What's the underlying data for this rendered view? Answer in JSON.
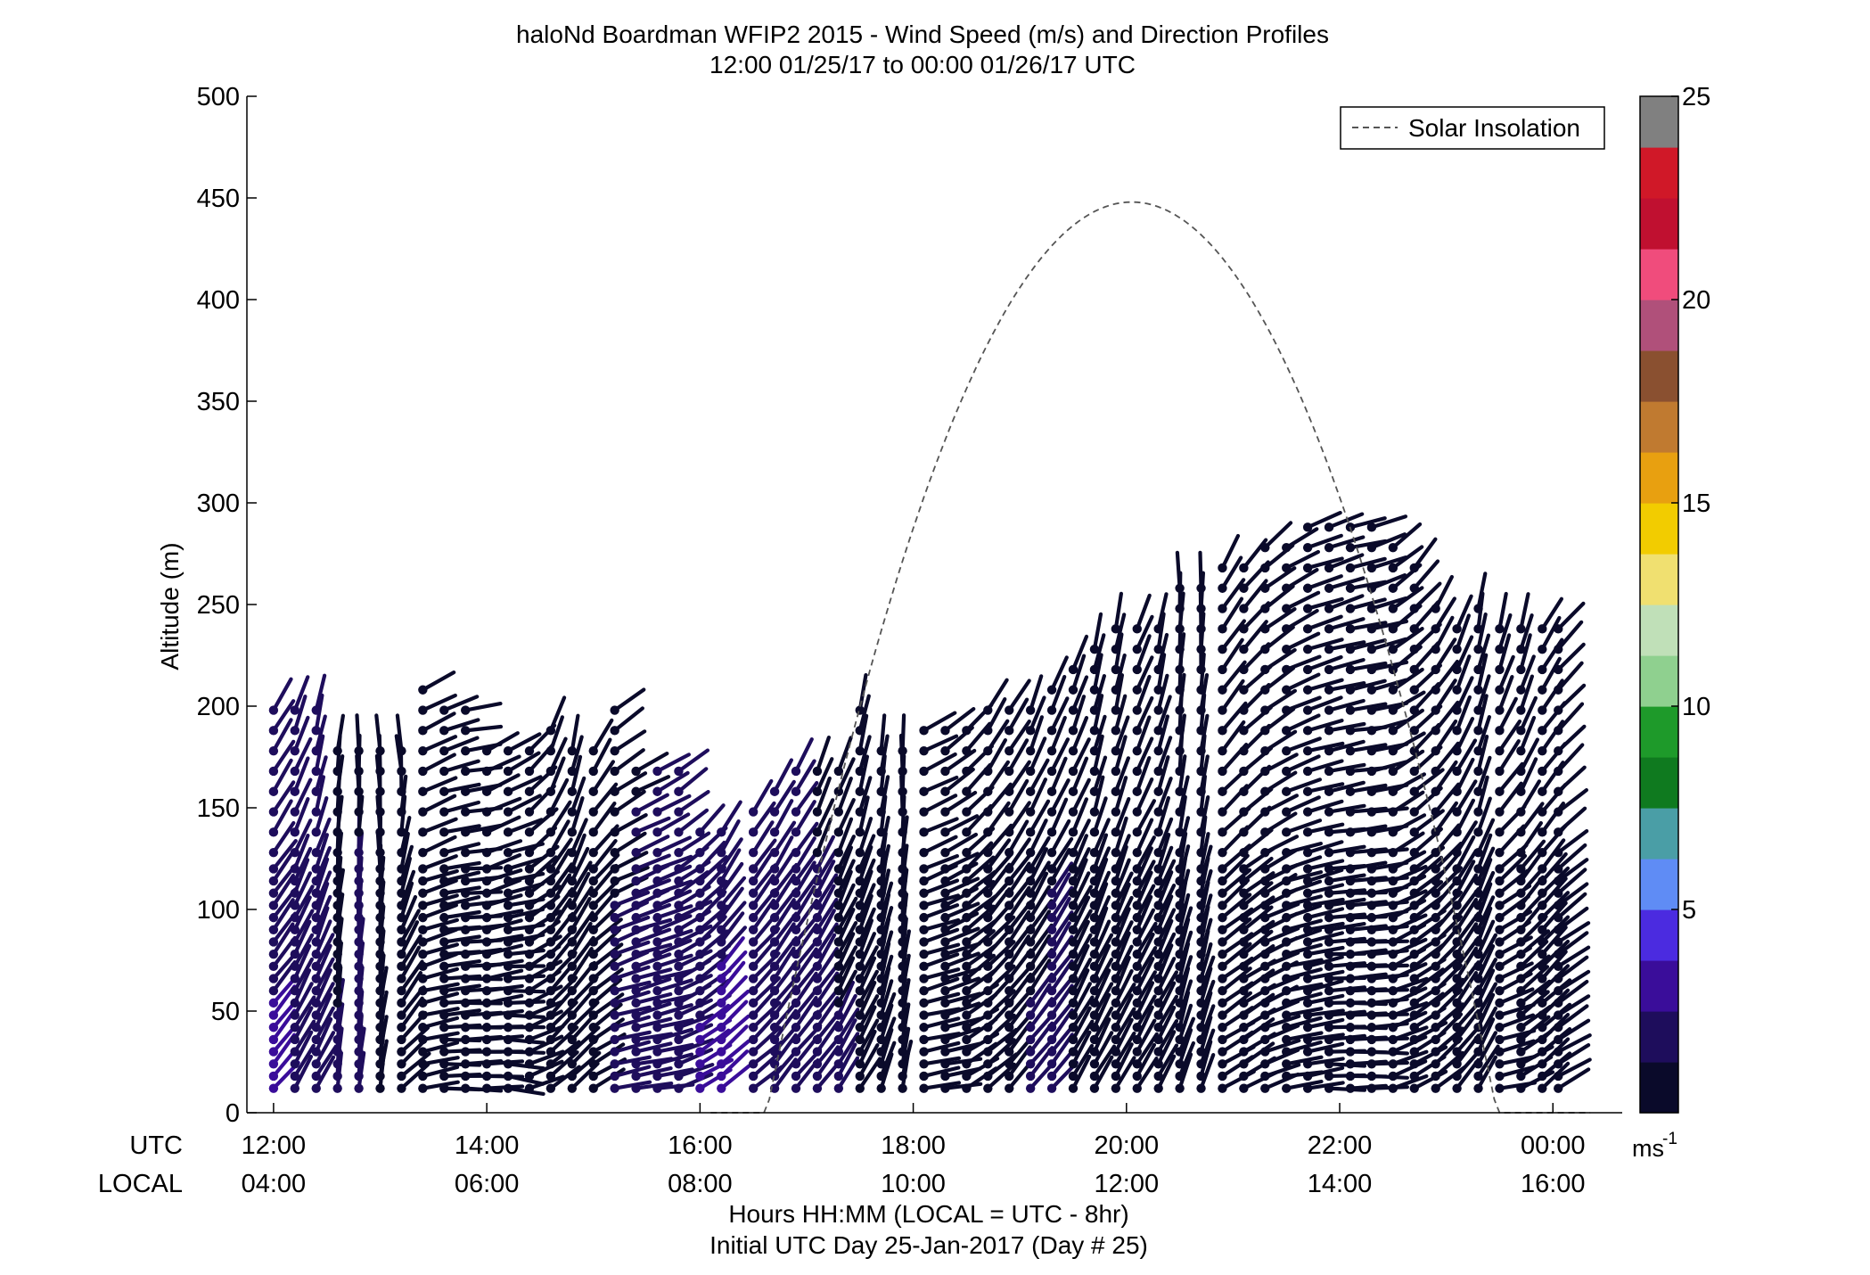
{
  "chart_data": {
    "type": "wind-barb-profile",
    "title": "haloNd Boardman WFIP2 2015 - Wind Speed (m/s) and Direction Profiles",
    "subtitle": "12:00 01/25/17 to 00:00 01/26/17  UTC",
    "ylabel": "Altitude (m)",
    "ylim": [
      0,
      500
    ],
    "yticks": [
      0,
      50,
      100,
      150,
      200,
      250,
      300,
      350,
      400,
      450,
      500
    ],
    "xlim_hours": [
      11.75,
      24.65
    ],
    "x_row_labels": {
      "utc": "UTC",
      "local": "LOCAL"
    },
    "xticks": [
      {
        "hour": 12,
        "utc": "12:00",
        "local": "04:00"
      },
      {
        "hour": 14,
        "utc": "14:00",
        "local": "06:00"
      },
      {
        "hour": 16,
        "utc": "16:00",
        "local": "08:00"
      },
      {
        "hour": 18,
        "utc": "18:00",
        "local": "10:00"
      },
      {
        "hour": 20,
        "utc": "20:00",
        "local": "12:00"
      },
      {
        "hour": 22,
        "utc": "22:00",
        "local": "14:00"
      },
      {
        "hour": 24,
        "utc": "00:00",
        "local": "16:00"
      }
    ],
    "xlabel": "Hours HH:MM  (LOCAL = UTC - 8hr)",
    "xlabel2": "Initial UTC Day 25-Jan-2017 (Day # 25)",
    "legend": {
      "label": "Solar Insolation",
      "position": "top-right",
      "style": "dashed"
    },
    "solar_insolation": {
      "rise_hour": 16.6,
      "set_hour": 23.45,
      "peak_hour": 20.05,
      "peak_value": 448,
      "tail_end_hour": 24.4
    },
    "colorbar": {
      "min": 0,
      "max": 25,
      "ticks": [
        5,
        10,
        15,
        20,
        25
      ],
      "unit": "ms",
      "unit_exponent": "-1",
      "colors": [
        "#0a0a2a",
        "#1e0d5c",
        "#3a0d9a",
        "#4b2be0",
        "#5f8cf5",
        "#4a9ea6",
        "#0f7a1f",
        "#1e9a2a",
        "#8fd08f",
        "#c0e0b8",
        "#f0e070",
        "#f2cc00",
        "#e8a010",
        "#c07a30",
        "#8a5030",
        "#b0507a",
        "#f04c7c",
        "#c01030",
        "#d01828",
        "#808080"
      ]
    },
    "profiles": [
      {
        "hour": 12.0,
        "top": 205,
        "dir_lo": 140,
        "dir_hi": 150,
        "speed": 2.8
      },
      {
        "hour": 12.2,
        "top": 203,
        "dir_lo": 150,
        "dir_hi": 160,
        "speed": 2.5
      },
      {
        "hour": 12.4,
        "top": 203,
        "dir_lo": 150,
        "dir_hi": 170,
        "speed": 2.4
      },
      {
        "hour": 12.6,
        "top": 185,
        "dir_lo": 175,
        "dir_hi": 175,
        "speed": 1.4
      },
      {
        "hour": 12.8,
        "top": 180,
        "dir_lo": 175,
        "dir_hi": 180,
        "speed": 1.6
      },
      {
        "hour": 13.0,
        "top": 178,
        "dir_lo": 170,
        "dir_hi": 185,
        "speed": 1.2
      },
      {
        "hour": 13.2,
        "top": 185,
        "dir_lo": 130,
        "dir_hi": 190,
        "speed": 1.0
      },
      {
        "hour": 13.4,
        "top": 213,
        "dir_lo": 100,
        "dir_hi": 120,
        "speed": 0.9
      },
      {
        "hour": 13.6,
        "top": 203,
        "dir_lo": 90,
        "dir_hi": 110,
        "speed": 0.9
      },
      {
        "hour": 13.8,
        "top": 203,
        "dir_lo": 90,
        "dir_hi": 100,
        "speed": 0.8
      },
      {
        "hour": 14.0,
        "top": 178,
        "dir_lo": 90,
        "dir_hi": 120,
        "speed": 0.8
      },
      {
        "hour": 14.2,
        "top": 178,
        "dir_lo": 80,
        "dir_hi": 120,
        "speed": 1.0
      },
      {
        "hour": 14.4,
        "top": 182,
        "dir_lo": 110,
        "dir_hi": 140,
        "speed": 1.1
      },
      {
        "hour": 14.6,
        "top": 190,
        "dir_lo": 130,
        "dir_hi": 160,
        "speed": 1.2
      },
      {
        "hour": 14.8,
        "top": 180,
        "dir_lo": 130,
        "dir_hi": 170,
        "speed": 1.2
      },
      {
        "hour": 15.0,
        "top": 178,
        "dir_lo": 120,
        "dir_hi": 150,
        "speed": 1.3
      },
      {
        "hour": 15.2,
        "top": 203,
        "dir_lo": 100,
        "dir_hi": 130,
        "speed": 1.5
      },
      {
        "hour": 15.4,
        "top": 170,
        "dir_lo": 100,
        "dir_hi": 120,
        "speed": 1.7
      },
      {
        "hour": 15.6,
        "top": 170,
        "dir_lo": 100,
        "dir_hi": 120,
        "speed": 1.9
      },
      {
        "hour": 15.8,
        "top": 170,
        "dir_lo": 110,
        "dir_hi": 130,
        "speed": 2.1
      },
      {
        "hour": 16.0,
        "top": 145,
        "dir_lo": 120,
        "dir_hi": 140,
        "speed": 2.8
      },
      {
        "hour": 16.2,
        "top": 140,
        "dir_lo": 130,
        "dir_hi": 150,
        "speed": 3.0
      },
      {
        "hour": 16.5,
        "top": 150,
        "dir_lo": 130,
        "dir_hi": 150,
        "speed": 2.4
      },
      {
        "hour": 16.7,
        "top": 160,
        "dir_lo": 140,
        "dir_hi": 150,
        "speed": 2.2
      },
      {
        "hour": 16.9,
        "top": 175,
        "dir_lo": 140,
        "dir_hi": 150,
        "speed": 1.8
      },
      {
        "hour": 17.1,
        "top": 175,
        "dir_lo": 140,
        "dir_hi": 160,
        "speed": 1.6
      },
      {
        "hour": 17.3,
        "top": 170,
        "dir_lo": 150,
        "dir_hi": 160,
        "speed": 1.4
      },
      {
        "hour": 17.5,
        "top": 203,
        "dir_lo": 150,
        "dir_hi": 170,
        "speed": 1.3
      },
      {
        "hour": 17.7,
        "top": 178,
        "dir_lo": 160,
        "dir_hi": 175,
        "speed": 1.2
      },
      {
        "hour": 17.9,
        "top": 180,
        "dir_lo": 170,
        "dir_hi": 180,
        "speed": 1.1
      },
      {
        "hour": 18.1,
        "top": 192,
        "dir_lo": 100,
        "dir_hi": 120,
        "speed": 1.0
      },
      {
        "hour": 18.3,
        "top": 192,
        "dir_lo": 100,
        "dir_hi": 130,
        "speed": 1.0
      },
      {
        "hour": 18.5,
        "top": 190,
        "dir_lo": 120,
        "dir_hi": 140,
        "speed": 1.1
      },
      {
        "hour": 18.7,
        "top": 200,
        "dir_lo": 130,
        "dir_hi": 150,
        "speed": 1.2
      },
      {
        "hour": 18.9,
        "top": 203,
        "dir_lo": 140,
        "dir_hi": 150,
        "speed": 1.3
      },
      {
        "hour": 19.1,
        "top": 203,
        "dir_lo": 140,
        "dir_hi": 160,
        "speed": 1.4
      },
      {
        "hour": 19.3,
        "top": 215,
        "dir_lo": 140,
        "dir_hi": 160,
        "speed": 1.5
      },
      {
        "hour": 19.5,
        "top": 220,
        "dir_lo": 150,
        "dir_hi": 160,
        "speed": 1.3
      },
      {
        "hour": 19.7,
        "top": 230,
        "dir_lo": 150,
        "dir_hi": 170,
        "speed": 1.2
      },
      {
        "hour": 19.9,
        "top": 246,
        "dir_lo": 150,
        "dir_hi": 170,
        "speed": 1.1
      },
      {
        "hour": 20.1,
        "top": 246,
        "dir_lo": 150,
        "dir_hi": 160,
        "speed": 1.0
      },
      {
        "hour": 20.3,
        "top": 246,
        "dir_lo": 150,
        "dir_hi": 170,
        "speed": 1.0
      },
      {
        "hour": 20.5,
        "top": 260,
        "dir_lo": 160,
        "dir_hi": 180,
        "speed": 0.9
      },
      {
        "hour": 20.7,
        "top": 265,
        "dir_lo": 160,
        "dir_hi": 180,
        "speed": 0.9
      },
      {
        "hour": 20.9,
        "top": 268,
        "dir_lo": 120,
        "dir_hi": 150,
        "speed": 0.9
      },
      {
        "hour": 21.1,
        "top": 272,
        "dir_lo": 120,
        "dir_hi": 140,
        "speed": 1.0
      },
      {
        "hour": 21.3,
        "top": 280,
        "dir_lo": 110,
        "dir_hi": 130,
        "speed": 1.0
      },
      {
        "hour": 21.5,
        "top": 285,
        "dir_lo": 100,
        "dir_hi": 120,
        "speed": 1.0
      },
      {
        "hour": 21.7,
        "top": 290,
        "dir_lo": 100,
        "dir_hi": 110,
        "speed": 1.0
      },
      {
        "hour": 21.9,
        "top": 292,
        "dir_lo": 90,
        "dir_hi": 110,
        "speed": 1.0
      },
      {
        "hour": 22.1,
        "top": 292,
        "dir_lo": 90,
        "dir_hi": 105,
        "speed": 1.0
      },
      {
        "hour": 22.3,
        "top": 292,
        "dir_lo": 90,
        "dir_hi": 110,
        "speed": 1.0
      },
      {
        "hour": 22.5,
        "top": 280,
        "dir_lo": 110,
        "dir_hi": 130,
        "speed": 1.0
      },
      {
        "hour": 22.7,
        "top": 270,
        "dir_lo": 120,
        "dir_hi": 140,
        "speed": 1.0
      },
      {
        "hour": 22.9,
        "top": 250,
        "dir_lo": 130,
        "dir_hi": 150,
        "speed": 1.0
      },
      {
        "hour": 23.1,
        "top": 245,
        "dir_lo": 140,
        "dir_hi": 160,
        "speed": 1.0
      },
      {
        "hour": 23.3,
        "top": 250,
        "dir_lo": 150,
        "dir_hi": 170,
        "speed": 1.0
      },
      {
        "hour": 23.5,
        "top": 246,
        "dir_lo": 100,
        "dir_hi": 170,
        "speed": 0.9
      },
      {
        "hour": 23.7,
        "top": 246,
        "dir_lo": 120,
        "dir_hi": 170,
        "speed": 0.8
      },
      {
        "hour": 23.9,
        "top": 246,
        "dir_lo": 130,
        "dir_hi": 150,
        "speed": 0.8
      },
      {
        "hour": 24.05,
        "top": 246,
        "dir_lo": 120,
        "dir_hi": 140,
        "speed": 0.8
      }
    ]
  }
}
